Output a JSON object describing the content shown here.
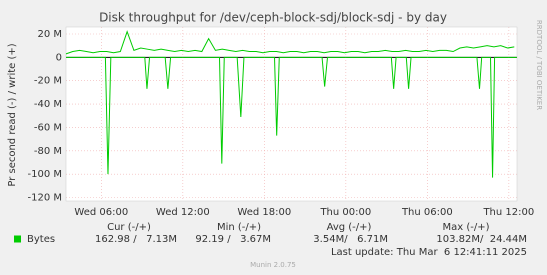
{
  "chart_data": {
    "type": "line",
    "title": "Disk throughput for /dev/ceph-block-sdj/block-sdj - by day",
    "y_label": "Pr second read (-) / write (+)",
    "side_text": "RRDTOOL / TOBI OETIKER",
    "ylim": [
      -123,
      26
    ],
    "yticks": [
      {
        "value": 20,
        "label": "20 M"
      },
      0,
      {
        "value": -20,
        "label": "-20 M"
      },
      {
        "value": -40,
        "label": "-40 M"
      },
      {
        "value": -60,
        "label": "-60 M"
      },
      {
        "value": -80,
        "label": "-80 M"
      },
      {
        "value": -100,
        "label": "-100 M"
      },
      {
        "value": -120,
        "label": "-120 M"
      }
    ],
    "xlim": [
      0,
      33.2
    ],
    "xticks": [
      {
        "value": 2.6,
        "label": "Wed 06:00"
      },
      {
        "value": 8.6,
        "label": "Wed 12:00"
      },
      {
        "value": 14.6,
        "label": "Wed 18:00"
      },
      {
        "value": 20.6,
        "label": "Thu 00:00"
      },
      {
        "value": 26.6,
        "label": "Thu 06:00"
      },
      {
        "value": 32.6,
        "label": "Thu 12:00"
      }
    ],
    "grid": true,
    "series": [
      {
        "color": "#00cc00",
        "x": [
          0,
          0.5,
          1,
          1.5,
          2,
          2.5,
          3,
          3.5,
          4,
          4.5,
          5,
          5.5,
          6,
          6.5,
          7,
          7.5,
          8,
          8.5,
          9,
          9.5,
          10,
          10.5,
          11,
          11.5,
          12,
          12.5,
          13,
          13.5,
          14,
          14.5,
          15,
          15.5,
          16,
          16.5,
          17,
          17.5,
          18,
          18.5,
          19,
          19.5,
          20,
          20.5,
          21,
          21.5,
          22,
          22.5,
          23,
          23.5,
          24,
          24.5,
          25,
          25.5,
          26,
          26.5,
          27,
          27.5,
          28,
          28.5,
          29,
          29.5,
          30,
          30.5,
          31,
          31.5,
          32,
          32.5,
          33
        ],
        "values": [
          3,
          5,
          6,
          5,
          4,
          5,
          5,
          4,
          5,
          22,
          6,
          8,
          7,
          6,
          7,
          6,
          5,
          6,
          5,
          6,
          5,
          16,
          6,
          7,
          6,
          5,
          6,
          5,
          5,
          4,
          5,
          5,
          4,
          5,
          5,
          4,
          5,
          5,
          4,
          5,
          5,
          4,
          5,
          5,
          4,
          5,
          5,
          6,
          5,
          5,
          6,
          5,
          5,
          6,
          5,
          6,
          6,
          5,
          8,
          9,
          8,
          9,
          10,
          9,
          10,
          8,
          9
        ]
      },
      {
        "color": "#00cc00",
        "x": [
          0,
          2.9,
          3.09,
          3.3,
          5.8,
          5.96,
          6.15,
          7.3,
          7.5,
          7.7,
          11.3,
          11.47,
          11.65,
          12.6,
          12.87,
          13.1,
          15.35,
          15.51,
          15.7,
          18.85,
          19.04,
          19.25,
          23.95,
          24.12,
          24.3,
          25.05,
          25.22,
          25.4,
          30.25,
          30.44,
          30.6,
          31.25,
          31.4,
          31.55,
          33.2
        ],
        "values": [
          0,
          0,
          -100,
          0,
          0,
          -27,
          0,
          0,
          -27,
          0,
          0,
          -91,
          0,
          0,
          -51,
          0,
          0,
          -67,
          0,
          0,
          -25,
          0,
          0,
          -27,
          0,
          0,
          -27,
          0,
          0,
          -27,
          0,
          0,
          -103,
          0,
          0
        ]
      }
    ],
    "legend_table": {
      "headers": [
        "Cur (-/+)",
        "Min (-/+)",
        "Avg (-/+)",
        "Max (-/+)"
      ],
      "rows": [
        {
          "name": "Bytes",
          "color": "#00cc00",
          "cells": [
            "162.98 /   7.13M",
            "92.19 /   3.67M",
            "3.54M/   6.71M",
            "103.82M/  24.44M"
          ]
        }
      ]
    },
    "last_update": "Last update: Thu Mar  6 12:41:11 2025",
    "footer": "Munin 2.0.75"
  }
}
